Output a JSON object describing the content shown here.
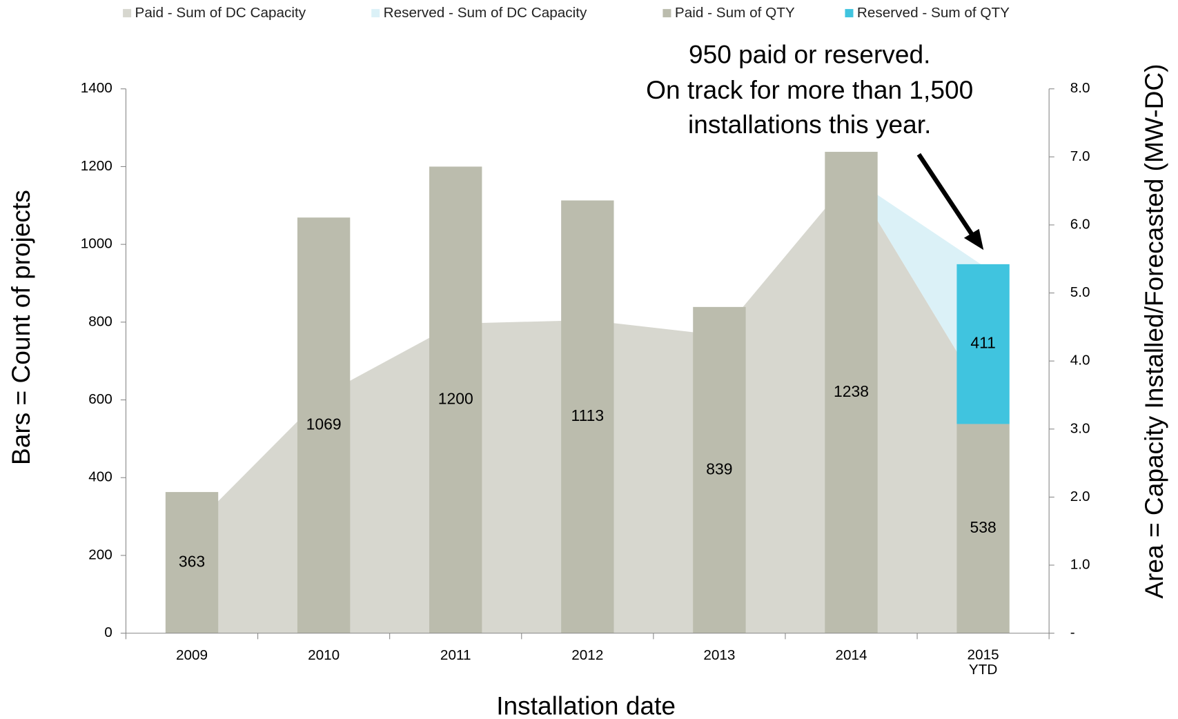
{
  "chart_data": {
    "type": "bar",
    "categories": [
      "2009",
      "2010",
      "2011",
      "2012",
      "2013",
      "2014",
      "2015 YTD"
    ],
    "series": [
      {
        "name": "Paid - Sum of DC Capacity",
        "color": "#d7d7cf",
        "type": "area",
        "axis": "y2",
        "values": [
          1.55,
          3.5,
          4.55,
          4.6,
          4.38,
          6.7,
          3.5
        ]
      },
      {
        "name": "Reserved - Sum of DC Capacity",
        "color": "#dbf1f7",
        "type": "area",
        "axis": "y2",
        "values": [
          null,
          null,
          null,
          null,
          null,
          0,
          1.9
        ]
      },
      {
        "name": "Paid - Sum of QTY",
        "color": "#bbbcad",
        "type": "bar",
        "values": [
          363,
          1069,
          1200,
          1113,
          839,
          1238,
          538
        ]
      },
      {
        "name": "Reserved - Sum of QTY",
        "color": "#40c4df",
        "type": "bar",
        "values": [
          null,
          null,
          null,
          null,
          null,
          null,
          411
        ]
      }
    ],
    "ylim": [
      0,
      1400
    ],
    "yticks": [
      0,
      200,
      400,
      600,
      800,
      1000,
      1200,
      1400
    ],
    "y2lim": [
      0,
      8
    ],
    "y2ticks": [
      {
        "value": 0,
        "label": "-"
      },
      {
        "value": 1,
        "label": "1.0"
      },
      {
        "value": 2,
        "label": "2.0"
      },
      {
        "value": 3,
        "label": "3.0"
      },
      {
        "value": 4,
        "label": "4.0"
      },
      {
        "value": 5,
        "label": "5.0"
      },
      {
        "value": 6,
        "label": "6.0"
      },
      {
        "value": 7,
        "label": "7.0"
      },
      {
        "value": 8,
        "label": "8.0"
      }
    ],
    "ylabel": "Bars = Count of projects",
    "y2label": "Area = Capacity Installed/Forecasted (MW-DC)",
    "xlabel": "Installation date",
    "annotation": [
      "950 paid or reserved.",
      "On track for more than 1,500",
      "installations this year."
    ],
    "legend": "top",
    "grid": false
  }
}
